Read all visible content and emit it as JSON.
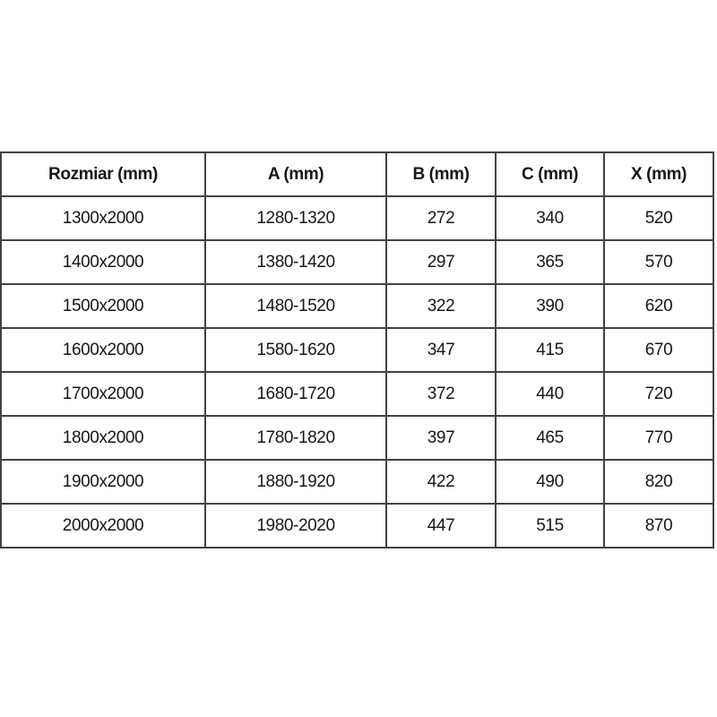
{
  "table": {
    "headers": [
      "Rozmiar (mm)",
      "A (mm)",
      "B (mm)",
      "C (mm)",
      "X (mm)"
    ],
    "rows": [
      [
        "1300x2000",
        "1280-1320",
        "272",
        "340",
        "520"
      ],
      [
        "1400x2000",
        "1380-1420",
        "297",
        "365",
        "570"
      ],
      [
        "1500x2000",
        "1480-1520",
        "322",
        "390",
        "620"
      ],
      [
        "1600x2000",
        "1580-1620",
        "347",
        "415",
        "670"
      ],
      [
        "1700x2000",
        "1680-1720",
        "372",
        "440",
        "720"
      ],
      [
        "1800x2000",
        "1780-1820",
        "397",
        "465",
        "770"
      ],
      [
        "1900x2000",
        "1880-1920",
        "422",
        "490",
        "820"
      ],
      [
        "2000x2000",
        "1980-2020",
        "447",
        "515",
        "870"
      ]
    ]
  },
  "colors": {
    "background": "#ffffff",
    "border": "#424242",
    "text": "#171717"
  }
}
